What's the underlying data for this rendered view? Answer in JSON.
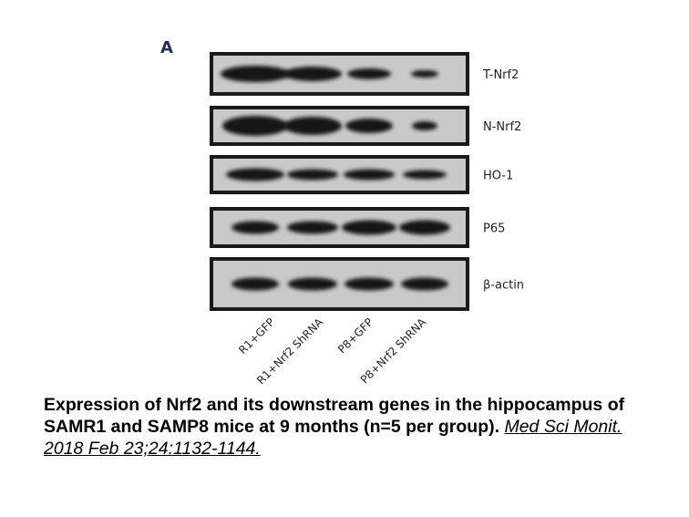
{
  "figure": {
    "panel": "A",
    "rows": [
      "T-Nrf2",
      "N-Nrf2",
      "HO-1",
      "P65",
      "β-actin"
    ],
    "lanes": [
      "R1+GFP",
      "R1+Nrf2 ShRNA",
      "P8+GFP",
      "P8+Nrf2 ShRNA"
    ]
  },
  "caption": {
    "text": "Expression of Nrf2 and its downstream genes in the hippocampus of SAMR1 and SAMP8 mice at 9 months (n=5 per group).",
    "citation": "Med Sci Monit. 2018 Feb 23;24:1132-1144."
  }
}
